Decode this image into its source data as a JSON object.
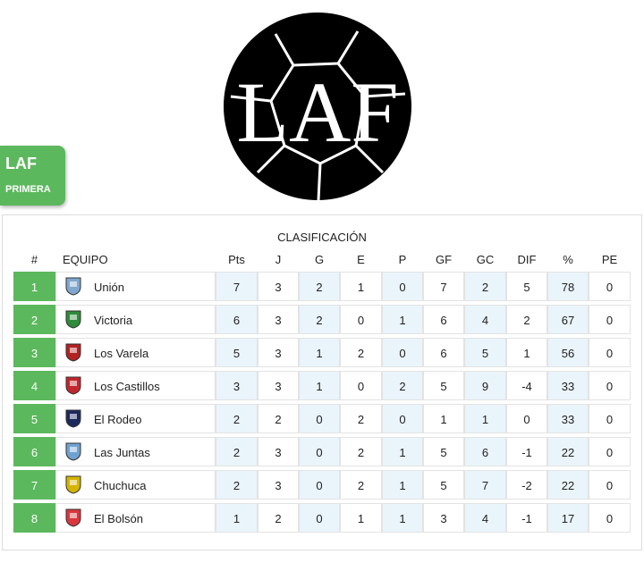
{
  "logo": {
    "text": "LAF"
  },
  "badge": {
    "title": "LAF",
    "subtitle": "PRIMERA"
  },
  "table": {
    "title": "CLASIFICACIÓN",
    "headers": [
      "#",
      "EQUIPO",
      "Pts",
      "J",
      "G",
      "E",
      "P",
      "GF",
      "GC",
      "DIF",
      "%",
      "PE"
    ],
    "rows": [
      [
        1,
        "Unión",
        7,
        3,
        2,
        1,
        0,
        7,
        2,
        5,
        78,
        0
      ],
      [
        2,
        "Victoria",
        6,
        3,
        2,
        0,
        1,
        6,
        4,
        2,
        67,
        0
      ],
      [
        3,
        "Los Varela",
        5,
        3,
        1,
        2,
        0,
        6,
        5,
        1,
        56,
        0
      ],
      [
        4,
        "Los Castillos",
        3,
        3,
        1,
        0,
        2,
        5,
        9,
        -4,
        33,
        0
      ],
      [
        5,
        "El Rodeo",
        2,
        2,
        0,
        2,
        0,
        1,
        1,
        0,
        33,
        0
      ],
      [
        6,
        "Las Juntas",
        2,
        3,
        0,
        2,
        1,
        5,
        6,
        -1,
        22,
        0
      ],
      [
        7,
        "Chuchuca",
        2,
        3,
        0,
        2,
        1,
        5,
        7,
        -2,
        22,
        0
      ],
      [
        8,
        "El Bolsón",
        1,
        2,
        0,
        1,
        1,
        3,
        4,
        -1,
        17,
        0
      ]
    ]
  }
}
